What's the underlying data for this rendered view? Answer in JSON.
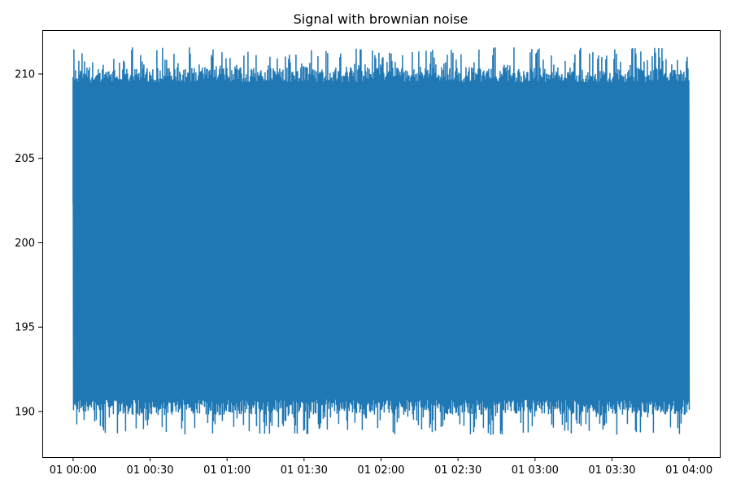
{
  "chart_data": {
    "type": "line",
    "title": "Signal with brownian noise",
    "xlabel": "",
    "ylabel": "",
    "x_tick_labels": [
      "01 00:00",
      "01 00:30",
      "01 01:00",
      "01 01:30",
      "01 02:00",
      "01 02:30",
      "01 03:00",
      "01 03:30",
      "01 04:00"
    ],
    "x_ticks_minutes": [
      0,
      30,
      60,
      90,
      120,
      150,
      180,
      210,
      240
    ],
    "x_range_minutes": [
      0,
      240
    ],
    "xlim_minutes": [
      -12,
      252
    ],
    "ylim": [
      187.3,
      212.6
    ],
    "y_ticks": [
      190,
      195,
      200,
      205,
      210
    ],
    "series": [
      {
        "color": "#1f77b4",
        "band_center": 200,
        "typical_range": [
          189.8,
          210.4
        ],
        "extreme_range": [
          188.6,
          211.6
        ],
        "start_value": 202.3,
        "end_value": 200.4
      }
    ],
    "grid": false,
    "legend": "none"
  }
}
